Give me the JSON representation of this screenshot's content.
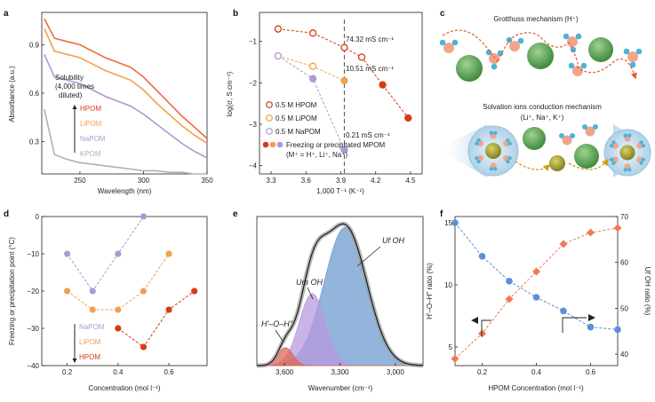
{
  "colors": {
    "hpom": "#d63b12",
    "hpom_light": "#ef6a3a",
    "lipom": "#f0a050",
    "napom": "#a99bd0",
    "kpom": "#b0b0b0",
    "orange_marker": "#ef7a52",
    "blue_marker": "#5b8fd6",
    "uf_fill": "#6f9ccf",
    "um_fill": "#b79ae0",
    "hoh_fill": "#e1654f",
    "ion_green": "#5ca35a",
    "ion_olive": "#a8a23a",
    "h_atom": "#4fb3d9",
    "o_atom": "#f0a58a"
  },
  "panels": {
    "a": {
      "label": "a",
      "ylabel": "Absorbance (a.u.)",
      "xlabel": "Wavelength (nm)",
      "xticks": [
        "250",
        "300",
        "350"
      ],
      "yticks": [
        "0.3",
        "0.6",
        "0.9"
      ],
      "annotation": [
        "Solubility",
        "(4,000 times",
        "diluted)"
      ],
      "legend": [
        "HPOM",
        "LiPOM",
        "NaPOM",
        "KPOM"
      ]
    },
    "b": {
      "label": "b",
      "ylabel": "log(σ, S cm⁻¹)",
      "xlabel": "1,000 T⁻¹ (K⁻¹)",
      "xticks": [
        "3.3",
        "3.6",
        "3.9",
        "4.2",
        "4.5"
      ],
      "yticks": [
        "−1",
        "−2",
        "−3",
        "−4"
      ],
      "value_labels": [
        "74.32 mS cm⁻¹",
        "10.51 mS cm⁻¹",
        "0.21 mS cm⁻¹"
      ],
      "legend": [
        "0.5 M HPOM",
        "0.5 M LiPOM",
        "0.5 M NaPOM",
        "Freezing or precipitated MPOM",
        "(M⁺ = H⁺, Li⁺, Na⁺)"
      ]
    },
    "c": {
      "label": "c",
      "title_top": "Grotthuss mechanism (H⁺)",
      "title_bottom": "Solvation ions conduction mechanism",
      "subtitle_bottom": "(Li⁺, Na⁺, K⁺)"
    },
    "d": {
      "label": "d",
      "ylabel": "Freezing or precipitation point (°C)",
      "xlabel": "Concentration (mol l⁻¹)",
      "xticks": [
        "0.2",
        "0.4",
        "0.6"
      ],
      "yticks": [
        "0",
        "−10",
        "−20",
        "−30",
        "−40"
      ],
      "legend": [
        "NaPOM",
        "LiPOM",
        "HPOM"
      ]
    },
    "e": {
      "label": "e",
      "xlabel": "Wavenumber (cm⁻¹)",
      "xticks": [
        "3,600",
        "3,300",
        "3,000"
      ],
      "peak_labels": [
        "Uf OH",
        "Um OH",
        "H'–O–H''"
      ]
    },
    "f": {
      "label": "f",
      "ylabel_left": "H'–O–H'' ratio (%)",
      "ylabel_right": "Uf OH ratio (%)",
      "xlabel": "HPOM Concentration (mol l⁻¹)",
      "xticks": [
        "0.2",
        "0.4",
        "0.6"
      ],
      "yticks_left": [
        "5",
        "10",
        "15"
      ],
      "yticks_right": [
        "40",
        "50",
        "60",
        "70"
      ]
    }
  },
  "chart_data": [
    {
      "id": "a",
      "type": "line",
      "title": "",
      "xlabel": "Wavelength (nm)",
      "ylabel": "Absorbance (a.u.)",
      "xlim": [
        220,
        350
      ],
      "ylim": [
        0.1,
        1.1
      ],
      "x": [
        222,
        230,
        240,
        250,
        260,
        270,
        280,
        290,
        300,
        310,
        320,
        330,
        340,
        350
      ],
      "series": [
        {
          "name": "HPOM",
          "values": [
            1.06,
            0.94,
            0.92,
            0.9,
            0.86,
            0.82,
            0.79,
            0.76,
            0.7,
            0.62,
            0.54,
            0.46,
            0.39,
            0.32
          ]
        },
        {
          "name": "LiPOM",
          "values": [
            1.0,
            0.86,
            0.84,
            0.82,
            0.78,
            0.74,
            0.71,
            0.68,
            0.62,
            0.54,
            0.47,
            0.4,
            0.34,
            0.29
          ]
        },
        {
          "name": "NaPOM",
          "values": [
            0.84,
            0.7,
            0.68,
            0.66,
            0.62,
            0.58,
            0.55,
            0.52,
            0.47,
            0.41,
            0.35,
            0.29,
            0.24,
            0.2
          ]
        },
        {
          "name": "KPOM",
          "values": [
            0.5,
            0.22,
            0.19,
            0.17,
            0.16,
            0.15,
            0.14,
            0.13,
            0.12,
            0.12,
            0.11,
            0.11,
            0.1,
            0.1
          ]
        }
      ]
    },
    {
      "id": "b",
      "type": "scatter",
      "xlabel": "1,000 T⁻¹ (K⁻¹)",
      "ylabel": "log(σ, S cm⁻¹)",
      "xlim": [
        3.2,
        4.6
      ],
      "ylim": [
        -4.2,
        -0.3
      ],
      "series": [
        {
          "name": "0.5 M HPOM",
          "x": [
            3.36,
            3.66,
            3.93,
            4.08,
            4.26,
            4.48
          ],
          "y": [
            -0.7,
            -0.8,
            -1.15,
            -1.38,
            -2.05,
            -2.85
          ],
          "filled_from_index": 4
        },
        {
          "name": "0.5 M LiPOM",
          "x": [
            3.36,
            3.66,
            3.93
          ],
          "y": [
            -1.35,
            -1.6,
            -1.95
          ],
          "filled_from_index": 2
        },
        {
          "name": "0.5 M NaPOM",
          "x": [
            3.36,
            3.66,
            3.93
          ],
          "y": [
            -1.35,
            -1.9,
            -3.62
          ],
          "filled_from_index": 1
        }
      ],
      "reference_x": 3.93
    },
    {
      "id": "d",
      "type": "scatter",
      "xlabel": "Concentration (mol l⁻¹)",
      "ylabel": "Freezing or precipitation point (°C)",
      "xlim": [
        0.1,
        0.75
      ],
      "ylim": [
        -40,
        0
      ],
      "series": [
        {
          "name": "NaPOM",
          "x": [
            0.2,
            0.3,
            0.4,
            0.5
          ],
          "y": [
            -10,
            -20,
            -10,
            0
          ]
        },
        {
          "name": "LiPOM",
          "x": [
            0.2,
            0.3,
            0.4,
            0.5,
            0.6
          ],
          "y": [
            -20,
            -25,
            -25,
            -20,
            -10
          ]
        },
        {
          "name": "HPOM",
          "x": [
            0.4,
            0.5,
            0.6,
            0.7
          ],
          "y": [
            -30,
            -35,
            -25,
            -20
          ]
        }
      ]
    },
    {
      "id": "e",
      "type": "area",
      "xlabel": "Wavenumber (cm⁻¹)",
      "xlim": [
        3750,
        2850
      ],
      "series": [
        {
          "name": "Uf OH",
          "center": 3270,
          "height": 1.0,
          "width": 115
        },
        {
          "name": "Um OH",
          "center": 3450,
          "height": 0.52,
          "width": 70
        },
        {
          "name": "H'–O–H''",
          "center": 3595,
          "height": 0.13,
          "width": 40
        }
      ]
    },
    {
      "id": "f",
      "type": "scatter",
      "xlabel": "HPOM Concentration (mol l⁻¹)",
      "xlim": [
        0.1,
        0.7
      ],
      "series": [
        {
          "name": "H'–O–H'' ratio",
          "axis": "left",
          "ylim": [
            3.5,
            15.5
          ],
          "x": [
            0.1,
            0.2,
            0.3,
            0.4,
            0.5,
            0.6,
            0.7
          ],
          "y": [
            15.0,
            12.3,
            10.3,
            9.0,
            7.9,
            6.6,
            6.4
          ]
        },
        {
          "name": "Uf OH ratio",
          "axis": "right",
          "ylim": [
            37.5,
            70
          ],
          "x": [
            0.1,
            0.2,
            0.3,
            0.4,
            0.5,
            0.6,
            0.7
          ],
          "y": [
            39.0,
            44.5,
            52.0,
            58.0,
            64.0,
            66.5,
            67.5
          ]
        }
      ]
    }
  ]
}
